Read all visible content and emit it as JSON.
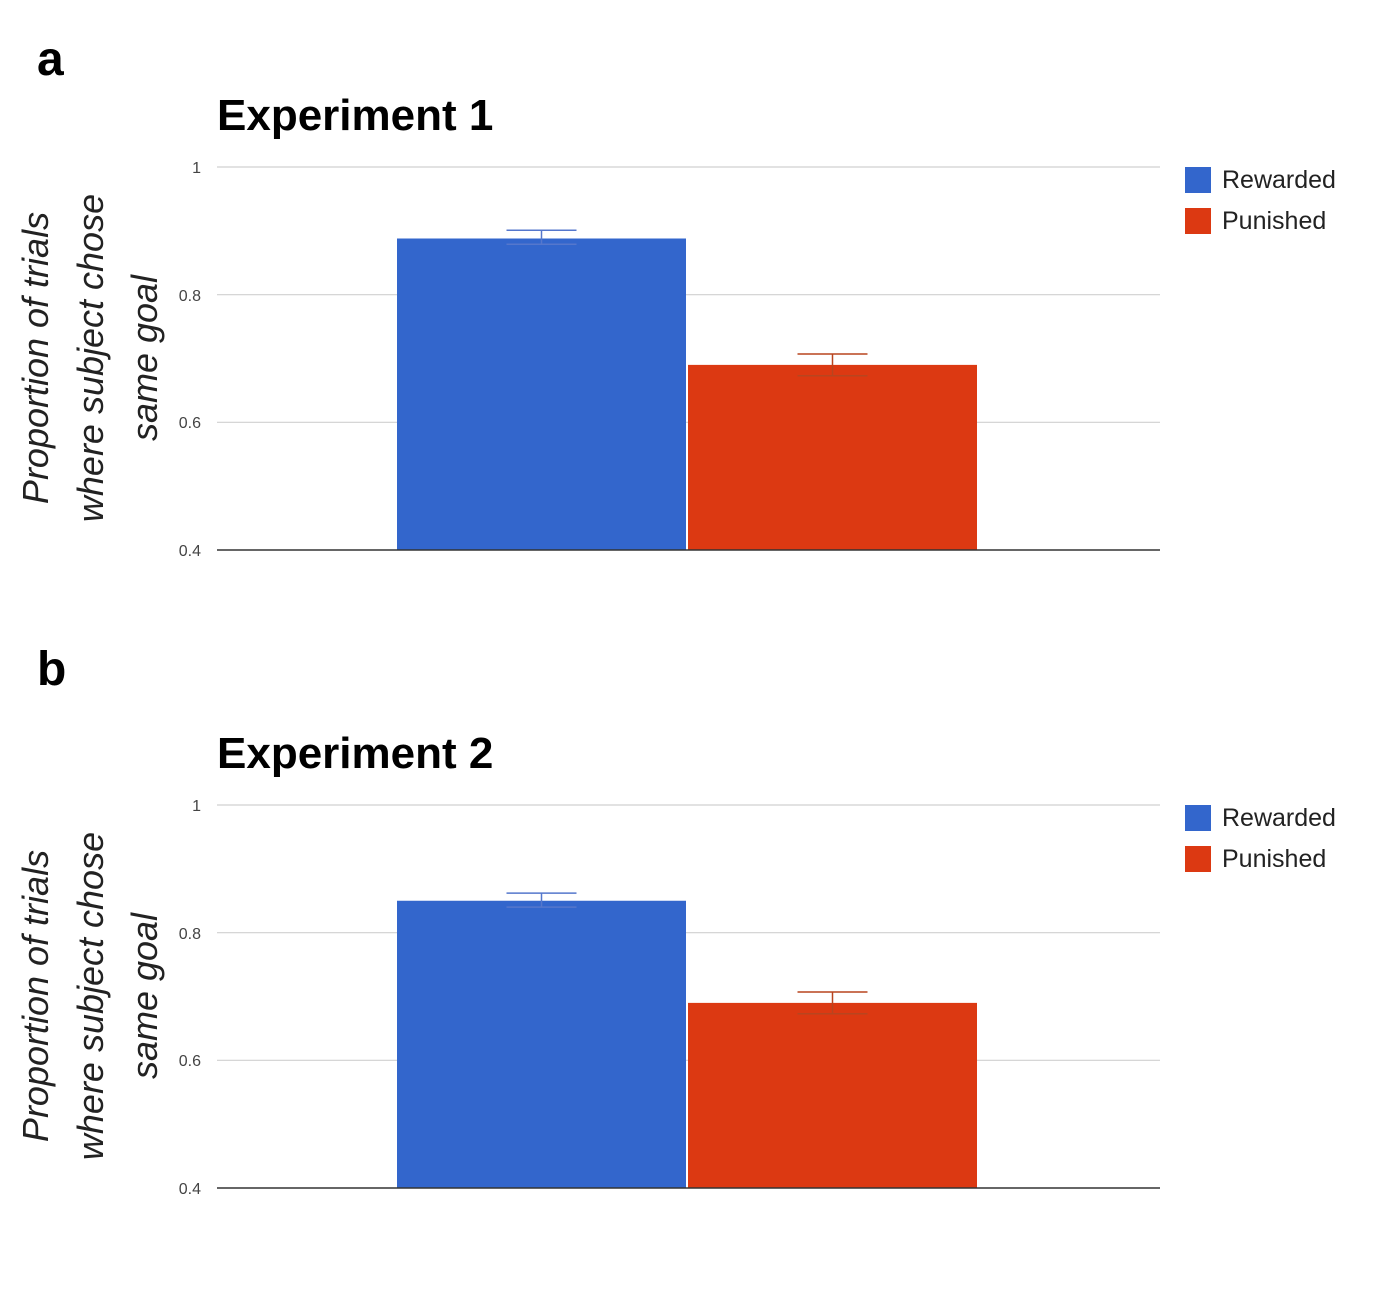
{
  "chart_data": [
    {
      "panel": "a",
      "type": "bar",
      "title": "Experiment 1",
      "ylabel": [
        "Proportion of trials",
        "where subject chose",
        "same goal"
      ],
      "ylim": [
        0.4,
        1
      ],
      "yticks": [
        "1",
        "0.8",
        "0.6",
        "0.4"
      ],
      "grid": true,
      "legend_position": "top-right",
      "series": [
        {
          "name": "Rewarded",
          "color": "#3366cc",
          "value": 0.888,
          "err_low": 0.879,
          "err_high": 0.901
        },
        {
          "name": "Punished",
          "color": "#dc3912",
          "value": 0.69,
          "err_low": 0.673,
          "err_high": 0.707
        }
      ]
    },
    {
      "panel": "b",
      "type": "bar",
      "title": "Experiment 2",
      "ylabel": [
        "Proportion of trials",
        "where subject chose",
        "same goal"
      ],
      "ylim": [
        0.4,
        1
      ],
      "yticks": [
        "1",
        "0.8",
        "0.6",
        "0.4"
      ],
      "grid": true,
      "legend_position": "top-right",
      "series": [
        {
          "name": "Rewarded",
          "color": "#3366cc",
          "value": 0.85,
          "err_low": 0.84,
          "err_high": 0.862
        },
        {
          "name": "Punished",
          "color": "#dc3912",
          "value": 0.69,
          "err_low": 0.673,
          "err_high": 0.707
        }
      ]
    }
  ]
}
